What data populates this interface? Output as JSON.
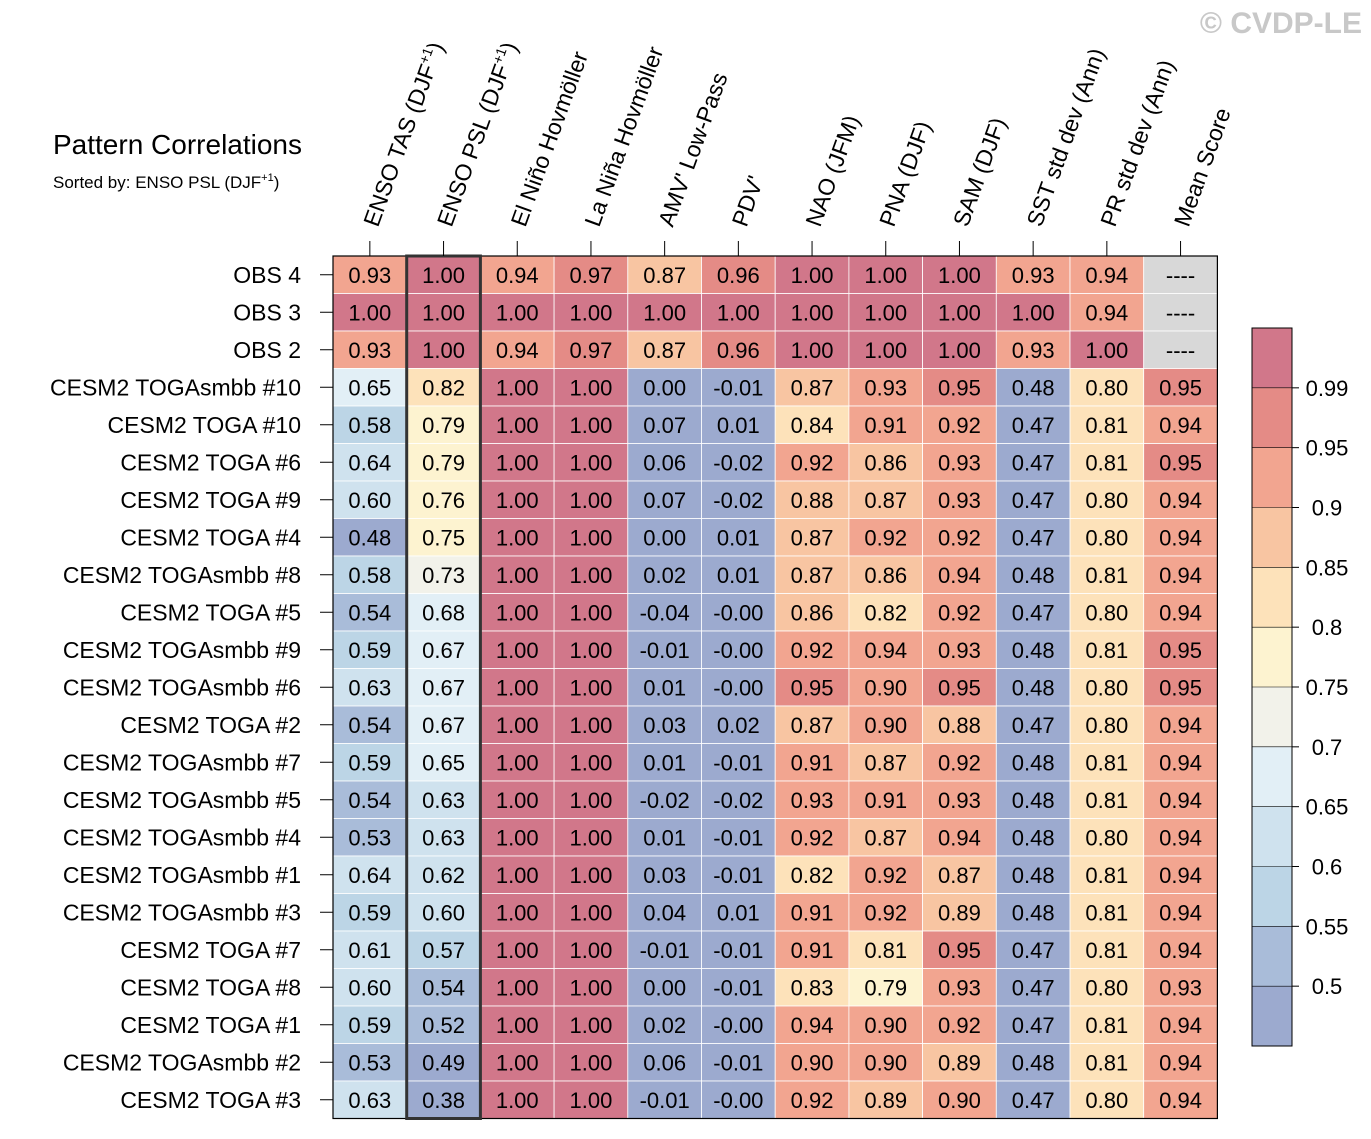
{
  "watermark": "© CVDP-LE",
  "chart_data": {
    "type": "heatmap",
    "title": "Pattern Correlations",
    "subtitle_prefix": "Sorted by: ENSO PSL (DJF",
    "subtitle_sup": "+1",
    "subtitle_suffix": ")",
    "highlight_column": 1,
    "columns": [
      {
        "base": "ENSO TAS (DJF",
        "sup": "+1",
        "tail": ")"
      },
      {
        "base": "ENSO PSL (DJF",
        "sup": "+1",
        "tail": ")"
      },
      {
        "base": "El Niño Hovmöller"
      },
      {
        "base": "La Niña Hovmöller"
      },
      {
        "base": "AMV' Low-Pass"
      },
      {
        "base": "PDV'"
      },
      {
        "base": "NAO (JFM)"
      },
      {
        "base": "PNA (DJF)"
      },
      {
        "base": "SAM (DJF)"
      },
      {
        "base": "SST std dev (Ann)"
      },
      {
        "base": "PR std dev (Ann)"
      },
      {
        "base": "Mean Score"
      }
    ],
    "rows": [
      {
        "name": "OBS 4",
        "values": [
          "0.93",
          "1.00",
          "0.94",
          "0.97",
          "0.87",
          "0.96",
          "1.00",
          "1.00",
          "1.00",
          "0.93",
          "0.94",
          "----"
        ]
      },
      {
        "name": "OBS 3",
        "values": [
          "1.00",
          "1.00",
          "1.00",
          "1.00",
          "1.00",
          "1.00",
          "1.00",
          "1.00",
          "1.00",
          "1.00",
          "0.94",
          "----"
        ]
      },
      {
        "name": "OBS 2",
        "values": [
          "0.93",
          "1.00",
          "0.94",
          "0.97",
          "0.87",
          "0.96",
          "1.00",
          "1.00",
          "1.00",
          "0.93",
          "1.00",
          "----"
        ]
      },
      {
        "name": "CESM2 TOGAsmbb #10",
        "values": [
          "0.65",
          "0.82",
          "1.00",
          "1.00",
          "0.00",
          "-0.01",
          "0.87",
          "0.93",
          "0.95",
          "0.48",
          "0.80",
          "0.95"
        ]
      },
      {
        "name": "CESM2 TOGA #10",
        "values": [
          "0.58",
          "0.79",
          "1.00",
          "1.00",
          "0.07",
          "0.01",
          "0.84",
          "0.91",
          "0.92",
          "0.47",
          "0.81",
          "0.94"
        ]
      },
      {
        "name": "CESM2 TOGA #6",
        "values": [
          "0.64",
          "0.79",
          "1.00",
          "1.00",
          "0.06",
          "-0.02",
          "0.92",
          "0.86",
          "0.93",
          "0.47",
          "0.81",
          "0.95"
        ]
      },
      {
        "name": "CESM2 TOGA #9",
        "values": [
          "0.60",
          "0.76",
          "1.00",
          "1.00",
          "0.07",
          "-0.02",
          "0.88",
          "0.87",
          "0.93",
          "0.47",
          "0.80",
          "0.94"
        ]
      },
      {
        "name": "CESM2 TOGA #4",
        "values": [
          "0.48",
          "0.75",
          "1.00",
          "1.00",
          "0.00",
          "0.01",
          "0.87",
          "0.92",
          "0.92",
          "0.47",
          "0.80",
          "0.94"
        ]
      },
      {
        "name": "CESM2 TOGAsmbb #8",
        "values": [
          "0.58",
          "0.73",
          "1.00",
          "1.00",
          "0.02",
          "0.01",
          "0.87",
          "0.86",
          "0.94",
          "0.48",
          "0.81",
          "0.94"
        ]
      },
      {
        "name": "CESM2 TOGA #5",
        "values": [
          "0.54",
          "0.68",
          "1.00",
          "1.00",
          "-0.04",
          "-0.00",
          "0.86",
          "0.82",
          "0.92",
          "0.47",
          "0.80",
          "0.94"
        ]
      },
      {
        "name": "CESM2 TOGAsmbb #9",
        "values": [
          "0.59",
          "0.67",
          "1.00",
          "1.00",
          "-0.01",
          "-0.00",
          "0.92",
          "0.94",
          "0.93",
          "0.48",
          "0.81",
          "0.95"
        ]
      },
      {
        "name": "CESM2 TOGAsmbb #6",
        "values": [
          "0.63",
          "0.67",
          "1.00",
          "1.00",
          "0.01",
          "-0.00",
          "0.95",
          "0.90",
          "0.95",
          "0.48",
          "0.80",
          "0.95"
        ]
      },
      {
        "name": "CESM2 TOGA #2",
        "values": [
          "0.54",
          "0.67",
          "1.00",
          "1.00",
          "0.03",
          "0.02",
          "0.87",
          "0.90",
          "0.88",
          "0.47",
          "0.80",
          "0.94"
        ]
      },
      {
        "name": "CESM2 TOGAsmbb #7",
        "values": [
          "0.59",
          "0.65",
          "1.00",
          "1.00",
          "0.01",
          "-0.01",
          "0.91",
          "0.87",
          "0.92",
          "0.48",
          "0.81",
          "0.94"
        ]
      },
      {
        "name": "CESM2 TOGAsmbb #5",
        "values": [
          "0.54",
          "0.63",
          "1.00",
          "1.00",
          "-0.02",
          "-0.02",
          "0.93",
          "0.91",
          "0.93",
          "0.48",
          "0.81",
          "0.94"
        ]
      },
      {
        "name": "CESM2 TOGAsmbb #4",
        "values": [
          "0.53",
          "0.63",
          "1.00",
          "1.00",
          "0.01",
          "-0.01",
          "0.92",
          "0.87",
          "0.94",
          "0.48",
          "0.80",
          "0.94"
        ]
      },
      {
        "name": "CESM2 TOGAsmbb #1",
        "values": [
          "0.64",
          "0.62",
          "1.00",
          "1.00",
          "0.03",
          "-0.01",
          "0.82",
          "0.92",
          "0.87",
          "0.48",
          "0.81",
          "0.94"
        ]
      },
      {
        "name": "CESM2 TOGAsmbb #3",
        "values": [
          "0.59",
          "0.60",
          "1.00",
          "1.00",
          "0.04",
          "0.01",
          "0.91",
          "0.92",
          "0.89",
          "0.48",
          "0.81",
          "0.94"
        ]
      },
      {
        "name": "CESM2 TOGA #7",
        "values": [
          "0.61",
          "0.57",
          "1.00",
          "1.00",
          "-0.01",
          "-0.01",
          "0.91",
          "0.81",
          "0.95",
          "0.47",
          "0.81",
          "0.94"
        ]
      },
      {
        "name": "CESM2 TOGA #8",
        "values": [
          "0.60",
          "0.54",
          "1.00",
          "1.00",
          "0.00",
          "-0.01",
          "0.83",
          "0.79",
          "0.93",
          "0.47",
          "0.80",
          "0.93"
        ]
      },
      {
        "name": "CESM2 TOGA #1",
        "values": [
          "0.59",
          "0.52",
          "1.00",
          "1.00",
          "0.02",
          "-0.00",
          "0.94",
          "0.90",
          "0.92",
          "0.47",
          "0.81",
          "0.94"
        ]
      },
      {
        "name": "CESM2 TOGAsmbb #2",
        "values": [
          "0.53",
          "0.49",
          "1.00",
          "1.00",
          "0.06",
          "-0.01",
          "0.90",
          "0.90",
          "0.89",
          "0.48",
          "0.81",
          "0.94"
        ]
      },
      {
        "name": "CESM2 TOGA #3",
        "values": [
          "0.63",
          "0.38",
          "1.00",
          "1.00",
          "-0.01",
          "-0.00",
          "0.92",
          "0.89",
          "0.90",
          "0.47",
          "0.80",
          "0.94"
        ]
      }
    ],
    "missing_color": "#d8d8d8",
    "colorbar": {
      "levels": [
        0.5,
        0.55,
        0.6,
        0.65,
        0.7,
        0.75,
        0.8,
        0.85,
        0.9,
        0.95,
        0.99
      ],
      "labels": [
        "0.5",
        "0.55",
        "0.6",
        "0.65",
        "0.7",
        "0.75",
        "0.8",
        "0.85",
        "0.9",
        "0.95",
        "0.99"
      ],
      "colors": [
        "#9caacf",
        "#a9bcd9",
        "#bcd5e6",
        "#cfe2ee",
        "#e2eff6",
        "#f2f2ea",
        "#fdf3d0",
        "#fde2ba",
        "#f8c5a2",
        "#f2a590",
        "#e48b86",
        "#d1778a"
      ]
    }
  }
}
